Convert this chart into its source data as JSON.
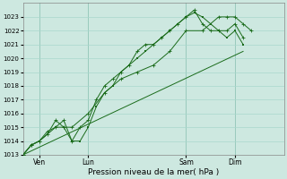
{
  "xlabel": "Pression niveau de la mer( hPa )",
  "background_color": "#cde8e0",
  "grid_color": "#a8d8cc",
  "line_color": "#1a6b1a",
  "ylim": [
    1013,
    1024
  ],
  "yticks": [
    1013,
    1014,
    1015,
    1016,
    1017,
    1018,
    1019,
    1020,
    1021,
    1022,
    1023
  ],
  "xlim": [
    0,
    16
  ],
  "xtick_labels": [
    "Ven",
    "Lun",
    "Sam",
    "Dim"
  ],
  "xtick_positions": [
    1,
    4,
    10,
    13
  ],
  "vline_positions": [
    1,
    4,
    10,
    13
  ],
  "series1_x": [
    0,
    0.5,
    1,
    1.5,
    2,
    2.5,
    3,
    3.5,
    4,
    4.5,
    5,
    5.5,
    6,
    6.5,
    7,
    7.5,
    8,
    8.5,
    9,
    9.5,
    10,
    10.5,
    11,
    11.5,
    12,
    12.5,
    13,
    13.5
  ],
  "series1_y": [
    1013,
    1013.7,
    1014,
    1014.5,
    1015,
    1015,
    1014,
    1014,
    1015,
    1016.5,
    1017.5,
    1018,
    1019,
    1019.5,
    1020,
    1020.5,
    1021,
    1021.5,
    1022,
    1022.5,
    1023,
    1023.3,
    1023,
    1022.5,
    1022,
    1021.5,
    1022,
    1021
  ],
  "series2_x": [
    0,
    0.5,
    1,
    1.5,
    2,
    2.5,
    3,
    3.5,
    4,
    4.5,
    5,
    5.5,
    6,
    6.5,
    7,
    7.5,
    8,
    8.5,
    9,
    9.5,
    10,
    10.5,
    11,
    11.5,
    12,
    12.5,
    13,
    13.5
  ],
  "series2_y": [
    1013,
    1013.7,
    1014,
    1014.7,
    1015,
    1015.5,
    1014,
    1015,
    1015.5,
    1017,
    1018,
    1018.5,
    1019,
    1019.5,
    1020.5,
    1021,
    1021,
    1021.5,
    1022,
    1022.5,
    1023,
    1023.5,
    1022.5,
    1022,
    1022,
    1022,
    1022.5,
    1021.5
  ],
  "series3_x": [
    0,
    0.5,
    1,
    1.5,
    2,
    2.5,
    3,
    4,
    5,
    6,
    7,
    8,
    9,
    10,
    11,
    12,
    12.5,
    13,
    13.5,
    14
  ],
  "series3_y": [
    1013,
    1013.7,
    1014,
    1014.5,
    1015.5,
    1015,
    1015,
    1016,
    1017.5,
    1018.5,
    1019,
    1019.5,
    1020.5,
    1022,
    1022,
    1023,
    1023,
    1023,
    1022.5,
    1022
  ],
  "series4_x": [
    0,
    13.5
  ],
  "series4_y": [
    1013,
    1020.5
  ]
}
